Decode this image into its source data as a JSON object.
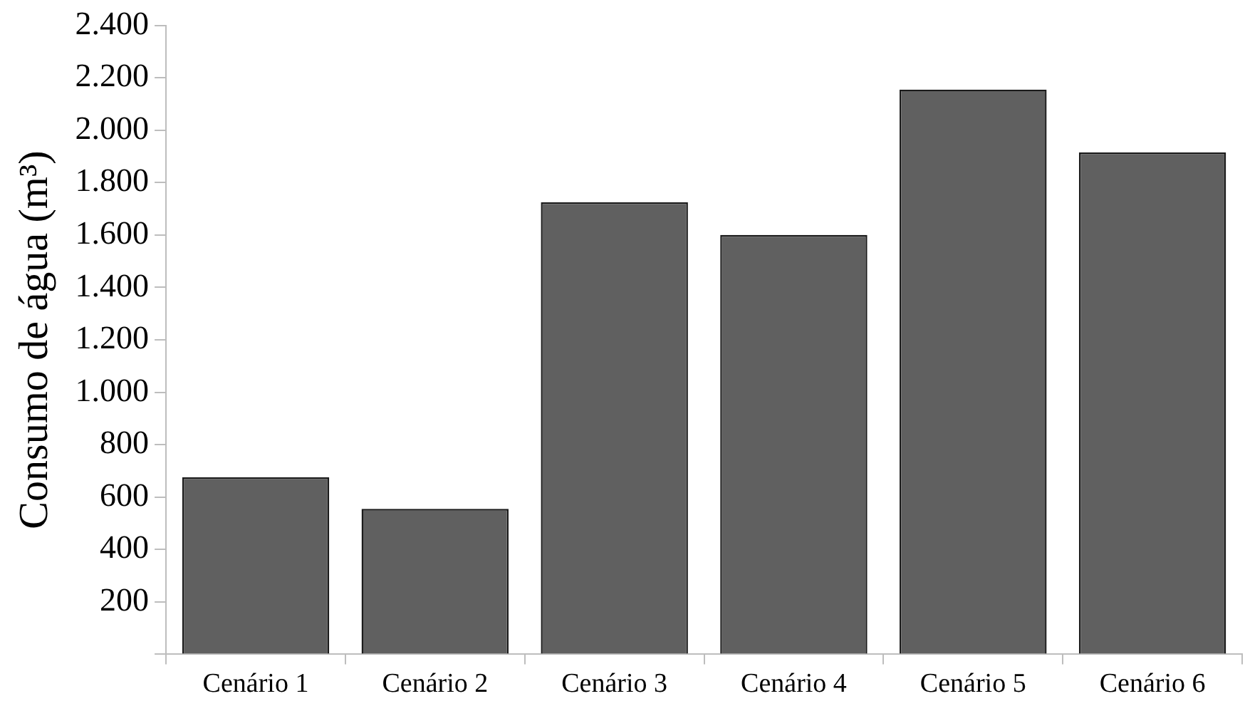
{
  "chart_data": {
    "type": "bar",
    "ylabel": "Consumo de água (m³)",
    "categories": [
      "Cenário 1",
      "Cenário 2",
      "Cenário 3",
      "Cenário 4",
      "Cenário 5",
      "Cenário 6"
    ],
    "values": [
      675,
      555,
      1725,
      1600,
      2155,
      1915
    ],
    "color": "#606060",
    "ylim": [
      0,
      2400
    ],
    "yticks": [
      {
        "value": 0,
        "label": null
      },
      {
        "value": 200,
        "label": "200"
      },
      {
        "value": 400,
        "label": "400"
      },
      {
        "value": 600,
        "label": "600"
      },
      {
        "value": 800,
        "label": "800"
      },
      {
        "value": 1000,
        "label": "1.000"
      },
      {
        "value": 1200,
        "label": "1.200"
      },
      {
        "value": 1400,
        "label": "1.400"
      },
      {
        "value": 1600,
        "label": "1.600"
      },
      {
        "value": 1800,
        "label": "1.800"
      },
      {
        "value": 2000,
        "label": "2.000"
      },
      {
        "value": 2200,
        "label": "2.200"
      },
      {
        "value": 2400,
        "label": "2.400"
      }
    ],
    "grid": false,
    "legend": false
  }
}
